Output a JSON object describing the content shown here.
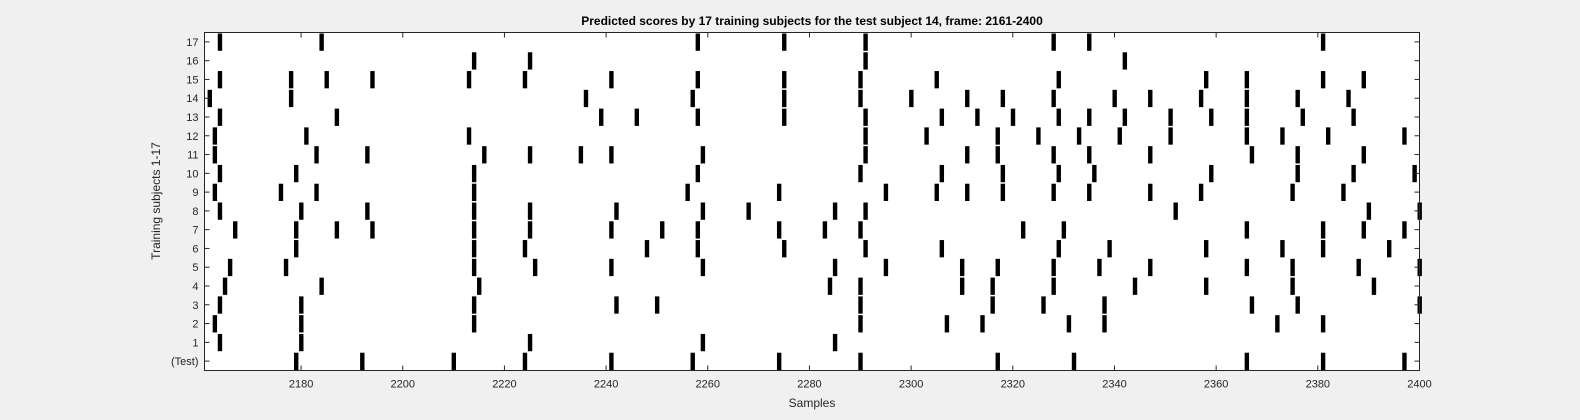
{
  "chart_data": {
    "type": "raster",
    "title": "Predicted scores by 17 training subjects for the test subject 14, frame: 2161-2400",
    "xlabel": "Samples",
    "ylabel": "Training subjects 1-17",
    "xlim": [
      2161,
      2400
    ],
    "x_ticks": [
      2180,
      2200,
      2220,
      2240,
      2260,
      2280,
      2300,
      2320,
      2340,
      2360,
      2380,
      2400
    ],
    "y_tick_labels": [
      "(Test)",
      "1",
      "2",
      "3",
      "4",
      "5",
      "6",
      "7",
      "8",
      "9",
      "10",
      "11",
      "12",
      "13",
      "14",
      "15",
      "16",
      "17"
    ],
    "rows": [
      {
        "label": "(Test)",
        "events": [
          2179,
          2192,
          2210,
          2224,
          2241,
          2257,
          2274,
          2290,
          2317,
          2332,
          2366,
          2381,
          2397
        ]
      },
      {
        "label": "1",
        "events": [
          2164,
          2180,
          2225,
          2259,
          2285
        ]
      },
      {
        "label": "2",
        "events": [
          2163,
          2180,
          2214,
          2290,
          2307,
          2314,
          2331,
          2338,
          2372,
          2381
        ]
      },
      {
        "label": "3",
        "events": [
          2164,
          2180,
          2214,
          2242,
          2250,
          2290,
          2316,
          2326,
          2338,
          2367,
          2376,
          2400
        ]
      },
      {
        "label": "4",
        "events": [
          2165,
          2184,
          2215,
          2284,
          2290,
          2310,
          2316,
          2328,
          2344,
          2358,
          2375,
          2391
        ]
      },
      {
        "label": "5",
        "events": [
          2166,
          2177,
          2214,
          2226,
          2241,
          2259,
          2285,
          2295,
          2310,
          2317,
          2328,
          2337,
          2347,
          2366,
          2375,
          2388,
          2400
        ]
      },
      {
        "label": "6",
        "events": [
          2179,
          2214,
          2224,
          2248,
          2258,
          2275,
          2291,
          2306,
          2329,
          2339,
          2358,
          2373,
          2381,
          2394
        ]
      },
      {
        "label": "7",
        "events": [
          2167,
          2179,
          2187,
          2194,
          2214,
          2225,
          2241,
          2251,
          2258,
          2274,
          2283,
          2290,
          2322,
          2330,
          2366,
          2381,
          2389,
          2397
        ]
      },
      {
        "label": "8",
        "events": [
          2164,
          2180,
          2193,
          2214,
          2225,
          2242,
          2259,
          2268,
          2285,
          2291,
          2352,
          2390,
          2400
        ]
      },
      {
        "label": "9",
        "events": [
          2163,
          2176,
          2183,
          2214,
          2256,
          2274,
          2295,
          2305,
          2311,
          2318,
          2328,
          2335,
          2347,
          2357,
          2375,
          2385
        ]
      },
      {
        "label": "10",
        "events": [
          2164,
          2179,
          2214,
          2258,
          2290,
          2306,
          2318,
          2329,
          2336,
          2359,
          2376,
          2387,
          2399
        ]
      },
      {
        "label": "11",
        "events": [
          2163,
          2183,
          2193,
          2216,
          2225,
          2235,
          2241,
          2259,
          2291,
          2311,
          2317,
          2328,
          2335,
          2347,
          2367,
          2376,
          2389
        ]
      },
      {
        "label": "12",
        "events": [
          2163,
          2181,
          2213,
          2291,
          2303,
          2317,
          2325,
          2333,
          2341,
          2351,
          2366,
          2373,
          2382,
          2397
        ]
      },
      {
        "label": "13",
        "events": [
          2164,
          2187,
          2239,
          2246,
          2258,
          2275,
          2291,
          2306,
          2313,
          2320,
          2329,
          2335,
          2342,
          2351,
          2359,
          2366,
          2377,
          2387
        ]
      },
      {
        "label": "14",
        "events": [
          2162,
          2178,
          2236,
          2257,
          2275,
          2290,
          2300,
          2311,
          2318,
          2328,
          2340,
          2347,
          2357,
          2366,
          2376,
          2386
        ]
      },
      {
        "label": "15",
        "events": [
          2164,
          2178,
          2185,
          2194,
          2213,
          2224,
          2241,
          2258,
          2275,
          2290,
          2305,
          2329,
          2358,
          2366,
          2381,
          2389
        ]
      },
      {
        "label": "16",
        "events": [
          2214,
          2225,
          2291,
          2342
        ]
      },
      {
        "label": "17",
        "events": [
          2164,
          2184,
          2258,
          2275,
          2291,
          2328,
          2335,
          2381
        ]
      }
    ]
  }
}
